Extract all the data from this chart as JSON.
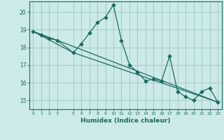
{
  "xlabel": "Humidex (Indice chaleur)",
  "ylabel": "",
  "bg_color": "#cceaea",
  "grid_color": "#aacccc",
  "line_color": "#1a6b60",
  "marker_color": "#1a6b60",
  "xlim": [
    -0.5,
    23.5
  ],
  "ylim": [
    14.5,
    20.6
  ],
  "yticks": [
    15,
    16,
    17,
    18,
    19,
    20
  ],
  "xticks": [
    0,
    1,
    2,
    3,
    5,
    6,
    7,
    8,
    9,
    10,
    11,
    12,
    13,
    14,
    15,
    16,
    17,
    18,
    19,
    20,
    21,
    22,
    23
  ],
  "series1_x": [
    0,
    1,
    2,
    3,
    5,
    6,
    7,
    8,
    9,
    10,
    11,
    12,
    13,
    14,
    15,
    16,
    17,
    18,
    19,
    20,
    21,
    22,
    23
  ],
  "series1_y": [
    18.9,
    18.7,
    18.5,
    18.4,
    17.7,
    18.2,
    18.8,
    19.4,
    19.7,
    20.4,
    18.4,
    17.0,
    16.6,
    16.1,
    16.2,
    16.1,
    17.5,
    15.5,
    15.2,
    15.0,
    15.5,
    15.7,
    14.9
  ],
  "series2_x": [
    0,
    3,
    23
  ],
  "series2_y": [
    18.9,
    18.4,
    14.9
  ],
  "series3_x": [
    0,
    5,
    23
  ],
  "series3_y": [
    18.9,
    17.7,
    14.9
  ]
}
